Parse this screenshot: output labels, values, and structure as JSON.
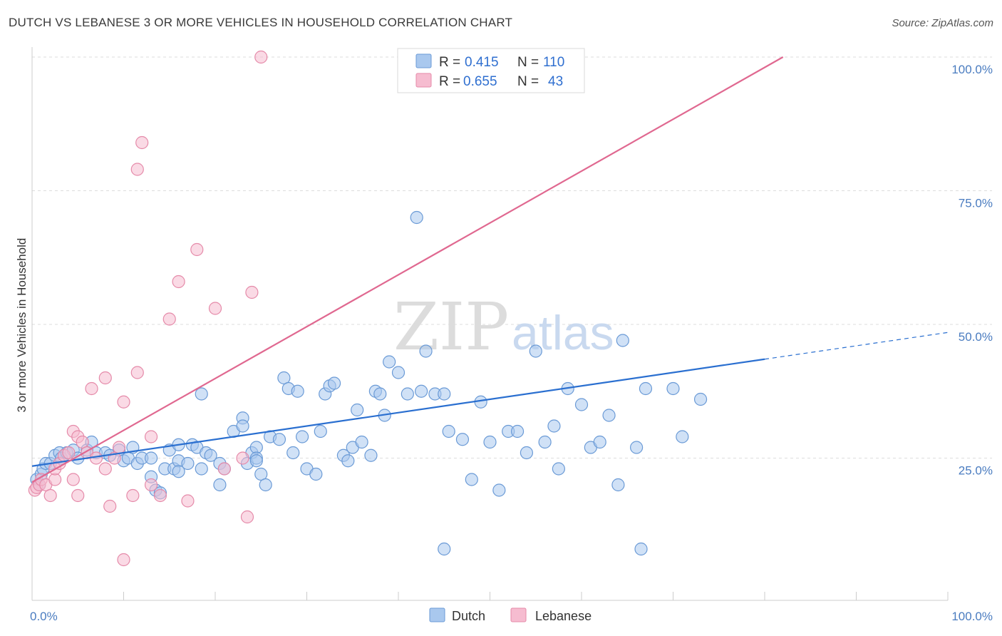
{
  "title": "DUTCH VS LEBANESE 3 OR MORE VEHICLES IN HOUSEHOLD CORRELATION CHART",
  "source": "Source: ZipAtlas.com",
  "watermark": {
    "zip": "ZIP",
    "atlas": "atlas"
  },
  "colors": {
    "dutch_fill": "#a9c8ee",
    "dutch_stroke": "#6a9ad6",
    "dutch_line": "#2a6fd0",
    "lebanese_fill": "#f6bcd0",
    "lebanese_stroke": "#e58aa9",
    "lebanese_line": "#e06890",
    "grid": "#dddddd",
    "tick_text": "#4a7cc0"
  },
  "legend": {
    "rows": [
      {
        "r_label": "R =",
        "r_value": "0.415",
        "n_label": "N =",
        "n_value": "110"
      },
      {
        "r_label": "R =",
        "r_value": "0.655",
        "n_label": "N =",
        "n_value": "43"
      }
    ]
  },
  "chart_data": {
    "type": "scatter",
    "title": "DUTCH VS LEBANESE 3 OR MORE VEHICLES IN HOUSEHOLD CORRELATION CHART",
    "xlabel": "",
    "ylabel": "3 or more Vehicles in Household",
    "xlim": [
      0,
      100
    ],
    "ylim": [
      0,
      100
    ],
    "x_tick_labels": [
      "0.0%",
      "100.0%"
    ],
    "y_ticks": [
      25,
      50,
      75,
      100
    ],
    "y_tick_labels": [
      "25.0%",
      "50.0%",
      "75.0%",
      "100.0%"
    ],
    "legend_labels": [
      "Dutch",
      "Lebanese"
    ],
    "series": [
      {
        "name": "Dutch",
        "trend": {
          "x": [
            0,
            80,
            100
          ],
          "y": [
            23.5,
            43.5,
            48.5
          ],
          "dashed_from_x": 80
        },
        "points": [
          [
            0.5,
            21
          ],
          [
            0.8,
            20
          ],
          [
            1,
            22
          ],
          [
            1.2,
            23
          ],
          [
            1.5,
            24
          ],
          [
            2,
            24
          ],
          [
            2.5,
            25.5
          ],
          [
            3,
            26
          ],
          [
            3.2,
            25
          ],
          [
            3.8,
            26
          ],
          [
            4.5,
            26.5
          ],
          [
            5,
            25
          ],
          [
            6,
            26.5
          ],
          [
            6.5,
            28
          ],
          [
            7,
            26
          ],
          [
            8,
            26
          ],
          [
            8.5,
            25.5
          ],
          [
            9.5,
            26.5
          ],
          [
            10,
            24.5
          ],
          [
            10.5,
            25
          ],
          [
            11,
            27
          ],
          [
            11.5,
            24
          ],
          [
            12,
            25
          ],
          [
            13,
            25
          ],
          [
            13,
            21.5
          ],
          [
            13.5,
            19
          ],
          [
            14,
            18.5
          ],
          [
            14.5,
            23
          ],
          [
            15,
            26.5
          ],
          [
            15.5,
            23
          ],
          [
            16,
            27.5
          ],
          [
            16,
            24.5
          ],
          [
            16,
            22.5
          ],
          [
            17,
            24
          ],
          [
            17.5,
            27.5
          ],
          [
            18,
            27
          ],
          [
            18.5,
            23
          ],
          [
            18.5,
            37
          ],
          [
            19,
            26
          ],
          [
            19.5,
            25.5
          ],
          [
            20.5,
            24
          ],
          [
            20.5,
            20
          ],
          [
            21,
            23
          ],
          [
            22,
            30
          ],
          [
            23,
            32.5
          ],
          [
            23,
            31
          ],
          [
            23.5,
            24
          ],
          [
            24,
            26
          ],
          [
            24.5,
            27
          ],
          [
            24.5,
            25
          ],
          [
            24.5,
            24.5
          ],
          [
            25,
            22
          ],
          [
            25.5,
            20
          ],
          [
            26,
            29
          ],
          [
            27,
            28.5
          ],
          [
            27.5,
            40
          ],
          [
            28,
            38
          ],
          [
            28.5,
            26
          ],
          [
            29,
            37.5
          ],
          [
            29.5,
            29
          ],
          [
            30,
            23
          ],
          [
            31,
            22
          ],
          [
            31.5,
            30
          ],
          [
            32,
            37
          ],
          [
            32.5,
            38.5
          ],
          [
            33,
            39
          ],
          [
            34,
            25.5
          ],
          [
            34.5,
            24.5
          ],
          [
            35,
            27
          ],
          [
            35.5,
            34
          ],
          [
            36,
            28
          ],
          [
            37,
            25.5
          ],
          [
            37.5,
            37.5
          ],
          [
            38,
            37
          ],
          [
            38.5,
            33
          ],
          [
            39,
            43
          ],
          [
            40,
            41
          ],
          [
            41,
            37
          ],
          [
            42,
            70
          ],
          [
            42.5,
            37.5
          ],
          [
            43,
            45
          ],
          [
            44,
            37
          ],
          [
            45,
            8
          ],
          [
            45,
            37
          ],
          [
            45.5,
            30
          ],
          [
            47,
            28.5
          ],
          [
            48,
            21
          ],
          [
            49,
            35.5
          ],
          [
            50,
            28
          ],
          [
            51,
            19
          ],
          [
            52,
            30
          ],
          [
            53,
            30
          ],
          [
            54,
            26
          ],
          [
            55,
            45
          ],
          [
            56,
            28
          ],
          [
            57,
            31
          ],
          [
            57.5,
            23
          ],
          [
            58.5,
            38
          ],
          [
            60,
            35
          ],
          [
            61,
            27
          ],
          [
            62,
            28
          ],
          [
            63,
            33
          ],
          [
            64,
            20
          ],
          [
            64.5,
            47
          ],
          [
            66,
            27
          ],
          [
            66.5,
            8
          ],
          [
            67,
            38
          ],
          [
            70,
            38
          ],
          [
            71,
            29
          ],
          [
            73,
            36
          ]
        ]
      },
      {
        "name": "Lebanese",
        "trend": {
          "x": [
            0,
            82
          ],
          "y": [
            20.5,
            100
          ]
        },
        "points": [
          [
            0.3,
            19
          ],
          [
            0.5,
            19.5
          ],
          [
            0.8,
            20
          ],
          [
            1,
            21
          ],
          [
            1.5,
            20
          ],
          [
            2,
            18
          ],
          [
            2.5,
            21
          ],
          [
            2.5,
            23
          ],
          [
            3,
            24
          ],
          [
            3.5,
            25.5
          ],
          [
            4,
            26
          ],
          [
            4.5,
            21
          ],
          [
            4.5,
            30
          ],
          [
            5,
            18
          ],
          [
            5,
            29
          ],
          [
            5.5,
            28
          ],
          [
            6,
            26
          ],
          [
            6.5,
            38
          ],
          [
            7,
            25
          ],
          [
            8,
            23
          ],
          [
            8,
            40
          ],
          [
            8.5,
            16
          ],
          [
            9,
            25
          ],
          [
            9.5,
            27
          ],
          [
            10,
            6
          ],
          [
            10,
            35.5
          ],
          [
            11,
            18
          ],
          [
            11.5,
            79
          ],
          [
            11.5,
            41
          ],
          [
            12,
            84
          ],
          [
            13,
            20
          ],
          [
            13,
            29
          ],
          [
            14,
            18
          ],
          [
            15,
            51
          ],
          [
            16,
            58
          ],
          [
            17,
            17
          ],
          [
            18,
            64
          ],
          [
            20,
            53
          ],
          [
            21,
            23
          ],
          [
            23,
            25
          ],
          [
            23.5,
            14
          ],
          [
            24,
            56
          ],
          [
            25,
            100
          ]
        ]
      }
    ]
  },
  "bottom_legend": {
    "dutch": "Dutch",
    "lebanese": "Lebanese"
  }
}
